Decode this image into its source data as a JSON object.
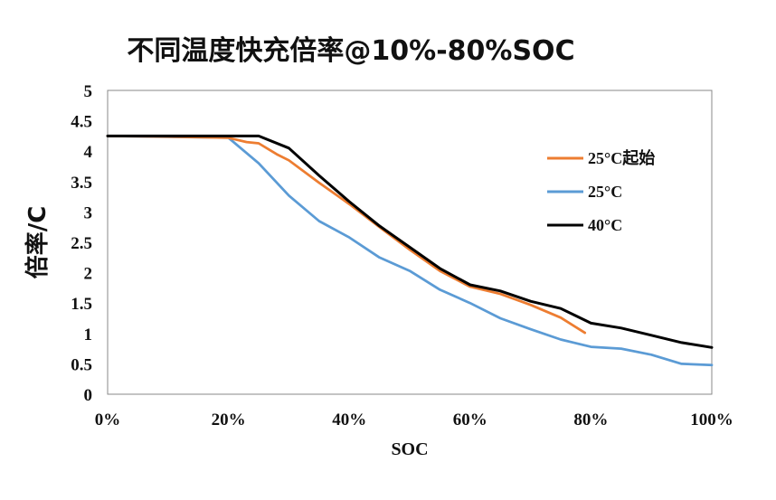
{
  "chart_data": {
    "type": "line",
    "title": "不同温度快充倍率@10%-80%SOC",
    "xlabel": "SOC",
    "ylabel": "倍率/C",
    "xlim": [
      0,
      100
    ],
    "ylim": [
      0,
      5
    ],
    "x_ticks": [
      "0%",
      "20%",
      "40%",
      "60%",
      "80%",
      "100%"
    ],
    "y_ticks": [
      "0",
      "0.5",
      "1",
      "1.5",
      "2",
      "2.5",
      "3",
      "3.5",
      "4",
      "4.5",
      "5"
    ],
    "grid": false,
    "legend": "right",
    "series": [
      {
        "name": "25°C起始",
        "color": "#ED7D31",
        "points": [
          [
            0,
            4.25
          ],
          [
            10,
            4.24
          ],
          [
            20,
            4.22
          ],
          [
            23,
            4.15
          ],
          [
            25,
            4.13
          ],
          [
            28,
            3.95
          ],
          [
            30,
            3.85
          ],
          [
            35,
            3.48
          ],
          [
            40,
            3.13
          ],
          [
            45,
            2.75
          ],
          [
            50,
            2.38
          ],
          [
            55,
            2.03
          ],
          [
            60,
            1.77
          ],
          [
            65,
            1.65
          ],
          [
            70,
            1.47
          ],
          [
            75,
            1.26
          ],
          [
            79,
            1.01
          ]
        ]
      },
      {
        "name": "25°C",
        "color": "#5B9BD5",
        "points": [
          [
            0,
            4.25
          ],
          [
            20,
            4.22
          ],
          [
            25,
            3.8
          ],
          [
            30,
            3.27
          ],
          [
            35,
            2.85
          ],
          [
            40,
            2.58
          ],
          [
            45,
            2.25
          ],
          [
            50,
            2.03
          ],
          [
            55,
            1.72
          ],
          [
            60,
            1.5
          ],
          [
            65,
            1.25
          ],
          [
            70,
            1.07
          ],
          [
            75,
            0.9
          ],
          [
            80,
            0.78
          ],
          [
            85,
            0.75
          ],
          [
            90,
            0.65
          ],
          [
            95,
            0.5
          ],
          [
            100,
            0.48
          ]
        ]
      },
      {
        "name": "40°C",
        "color": "#000000",
        "points": [
          [
            0,
            4.25
          ],
          [
            25,
            4.25
          ],
          [
            30,
            4.05
          ],
          [
            35,
            3.6
          ],
          [
            40,
            3.17
          ],
          [
            45,
            2.77
          ],
          [
            50,
            2.42
          ],
          [
            55,
            2.07
          ],
          [
            60,
            1.8
          ],
          [
            65,
            1.7
          ],
          [
            70,
            1.53
          ],
          [
            75,
            1.41
          ],
          [
            80,
            1.17
          ],
          [
            85,
            1.09
          ],
          [
            90,
            0.97
          ],
          [
            95,
            0.85
          ],
          [
            100,
            0.77
          ]
        ]
      }
    ]
  }
}
